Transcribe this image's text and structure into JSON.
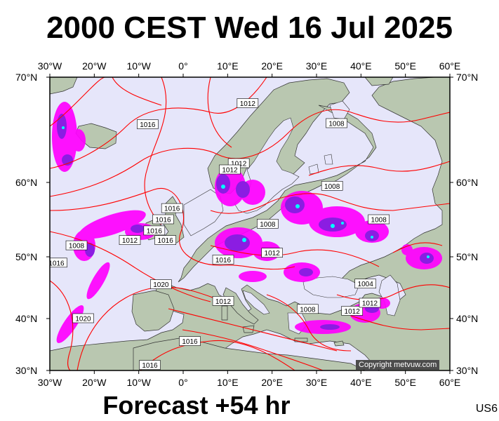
{
  "title": "2000 CEST Wed 16 Jul 2025",
  "subtitle": "Forecast +54 hr",
  "model_code": "US6",
  "copyright": "Copyright metvuw.com",
  "lon_ticks": [
    "30°W",
    "20°W",
    "10°W",
    "0°",
    "10°E",
    "20°E",
    "30°E",
    "40°E",
    "50°E",
    "60°E"
  ],
  "lat_ticks": [
    "70°N",
    "60°N",
    "50°N",
    "40°N",
    "30°N"
  ],
  "colors": {
    "sea": "#e6e6fa",
    "land": "#b9c7b0",
    "isobar": "#ff0000",
    "precip_light": "#ff00ff",
    "precip_mid": "#7f1fe0",
    "precip_heavy": "#00ffff"
  },
  "isobar_labels": [
    {
      "text": "1016",
      "lon": -8,
      "lat": 65.5
    },
    {
      "text": "1012",
      "lon": 14.5,
      "lat": 67.5
    },
    {
      "text": "1008",
      "lon": 34.5,
      "lat": 65.6
    },
    {
      "text": "1012",
      "lon": 12.5,
      "lat": 61.8
    },
    {
      "text": "1012",
      "lon": 10.5,
      "lat": 61.2
    },
    {
      "text": "1008",
      "lon": 33.5,
      "lat": 59.5
    },
    {
      "text": "1016",
      "lon": -2.5,
      "lat": 56.5
    },
    {
      "text": "1016",
      "lon": -4.5,
      "lat": 55
    },
    {
      "text": "1016",
      "lon": -6.5,
      "lat": 53.5
    },
    {
      "text": "1012",
      "lon": -12,
      "lat": 52.2
    },
    {
      "text": "1016",
      "lon": -4,
      "lat": 52.2
    },
    {
      "text": "1008",
      "lon": -24,
      "lat": 51.5
    },
    {
      "text": "1008",
      "lon": 19,
      "lat": 54.4
    },
    {
      "text": "1008",
      "lon": 44,
      "lat": 55
    },
    {
      "text": "1012",
      "lon": 20,
      "lat": 50.5
    },
    {
      "text": "1016",
      "lon": -28.5,
      "lat": 49
    },
    {
      "text": "1016",
      "lon": 9,
      "lat": 49.5
    },
    {
      "text": "1004",
      "lon": 41,
      "lat": 45.6
    },
    {
      "text": "1020",
      "lon": -5,
      "lat": 45.5
    },
    {
      "text": "1012",
      "lon": 9,
      "lat": 42.8
    },
    {
      "text": "1008",
      "lon": 28,
      "lat": 41.5
    },
    {
      "text": "1012",
      "lon": 38,
      "lat": 41.2
    },
    {
      "text": "1012",
      "lon": 42,
      "lat": 42.5
    },
    {
      "text": "1020",
      "lon": -22.5,
      "lat": 40
    },
    {
      "text": "1016",
      "lon": 1.5,
      "lat": 35.6
    },
    {
      "text": "1016",
      "lon": -7.5,
      "lat": 31
    }
  ]
}
